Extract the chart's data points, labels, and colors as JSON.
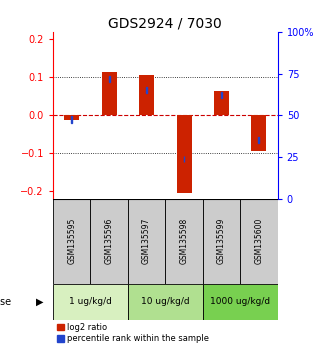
{
  "title": "GDS2924 / 7030",
  "samples": [
    "GSM135595",
    "GSM135596",
    "GSM135597",
    "GSM135598",
    "GSM135599",
    "GSM135600"
  ],
  "log2_ratios": [
    -0.012,
    0.115,
    0.105,
    -0.205,
    0.065,
    -0.095
  ],
  "percentile_ranks": [
    47.5,
    72.0,
    65.0,
    24.0,
    62.0,
    35.0
  ],
  "dose_labels": [
    "1 ug/kg/d",
    "10 ug/kg/d",
    "1000 ug/kg/d"
  ],
  "dose_colors": [
    "#d8f0c0",
    "#b0e090",
    "#78d050"
  ],
  "dose_ranges": [
    [
      0,
      2
    ],
    [
      2,
      4
    ],
    [
      4,
      6
    ]
  ],
  "ylim_left": [
    -0.22,
    0.22
  ],
  "ylim_right": [
    0,
    100
  ],
  "left_yticks": [
    -0.2,
    -0.1,
    0.0,
    0.1,
    0.2
  ],
  "right_yticks": [
    0,
    25,
    50,
    75,
    100
  ],
  "bar_color_red": "#cc2200",
  "bar_color_blue": "#2244cc",
  "sample_box_color": "#cccccc",
  "title_fontsize": 10,
  "bar_width": 0.4
}
